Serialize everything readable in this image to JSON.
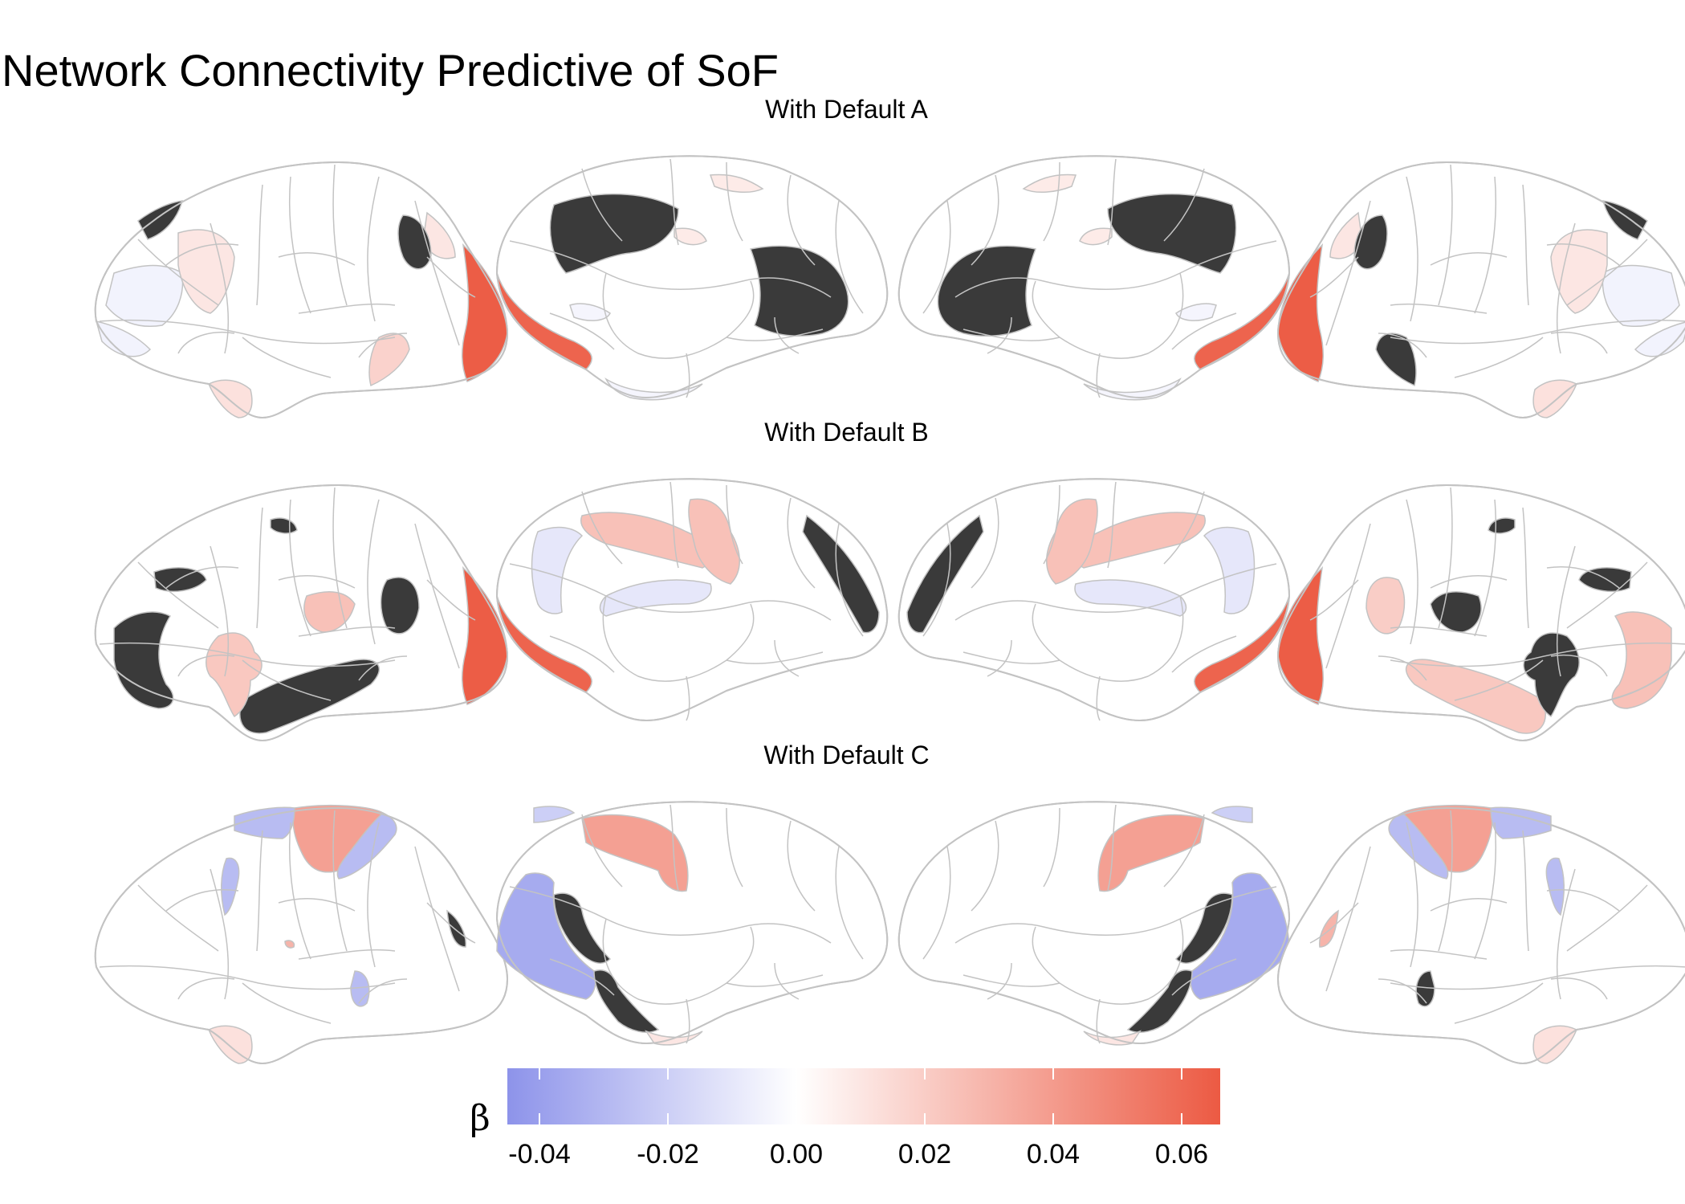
{
  "chart_data": {
    "type": "heatmap",
    "title": "Network Connectivity Predictive of SoF",
    "panels": [
      {
        "label": "With Default A",
        "views": [
          {
            "regions": [
              {
                "id": "R1",
                "value": -0.005
              },
              {
                "id": "R2",
                "value": 0.01
              },
              {
                "id": "R3",
                "value": 0.01
              },
              {
                "id": "R4",
                "value": 0.065
              },
              {
                "id": "R5",
                "value": null
              },
              {
                "id": "R6",
                "value": null
              },
              {
                "id": "R7",
                "value": 0.012
              },
              {
                "id": "R8",
                "value": 0.018
              },
              {
                "id": "R9",
                "value": -0.005
              }
            ]
          },
          {
            "regions": [
              {
                "id": "R1",
                "value": null
              },
              {
                "id": "R2",
                "value": null
              },
              {
                "id": "R3",
                "value": 0.062
              },
              {
                "id": "R4",
                "value": 0.008
              },
              {
                "id": "R5",
                "value": -0.004
              },
              {
                "id": "R6",
                "value": -0.004
              },
              {
                "id": "R7",
                "value": 0.008
              }
            ]
          },
          {
            "regions": [
              {
                "id": "R1",
                "value": null
              },
              {
                "id": "R2",
                "value": null
              },
              {
                "id": "R3",
                "value": 0.062
              },
              {
                "id": "R4",
                "value": 0.008
              },
              {
                "id": "R5",
                "value": -0.004
              },
              {
                "id": "R6",
                "value": -0.004
              },
              {
                "id": "R7",
                "value": 0.008
              }
            ]
          },
          {
            "regions": [
              {
                "id": "R1",
                "value": -0.005
              },
              {
                "id": "R2",
                "value": 0.01
              },
              {
                "id": "R3",
                "value": 0.01
              },
              {
                "id": "R4",
                "value": 0.065
              },
              {
                "id": "R5",
                "value": null
              },
              {
                "id": "R6",
                "value": null
              },
              {
                "id": "R7",
                "value": 0.012
              },
              {
                "id": "R8",
                "value": null
              },
              {
                "id": "R9",
                "value": -0.005
              }
            ]
          }
        ]
      },
      {
        "label": "With Default B",
        "views": [
          {
            "regions": [
              {
                "id": "R1",
                "value": null
              },
              {
                "id": "R2",
                "value": null
              },
              {
                "id": "R3",
                "value": null
              },
              {
                "id": "R4",
                "value": 0.065
              },
              {
                "id": "R5",
                "value": 0.025
              },
              {
                "id": "R6",
                "value": 0.022
              },
              {
                "id": "R7",
                "value": null
              },
              {
                "id": "R8",
                "value": null
              }
            ]
          },
          {
            "regions": [
              {
                "id": "R1",
                "value": 0.025
              },
              {
                "id": "R2",
                "value": 0.025
              },
              {
                "id": "R3",
                "value": -0.01
              },
              {
                "id": "R4",
                "value": -0.01
              },
              {
                "id": "R5",
                "value": null
              },
              {
                "id": "R6",
                "value": 0.062
              }
            ]
          },
          {
            "regions": [
              {
                "id": "R1",
                "value": 0.025
              },
              {
                "id": "R2",
                "value": 0.025
              },
              {
                "id": "R3",
                "value": -0.01
              },
              {
                "id": "R4",
                "value": -0.01
              },
              {
                "id": "R5",
                "value": null
              },
              {
                "id": "R6",
                "value": 0.062
              }
            ]
          },
          {
            "regions": [
              {
                "id": "R1",
                "value": null
              },
              {
                "id": "R2",
                "value": 0.025
              },
              {
                "id": "R3",
                "value": 0.022
              },
              {
                "id": "R4",
                "value": 0.065
              },
              {
                "id": "R5",
                "value": null
              },
              {
                "id": "R6",
                "value": null
              },
              {
                "id": "R7",
                "value": 0.02
              },
              {
                "id": "R8",
                "value": null
              }
            ]
          }
        ]
      },
      {
        "label": "With Default C",
        "views": [
          {
            "regions": [
              {
                "id": "R1",
                "value": 0.038
              },
              {
                "id": "R2",
                "value": -0.028
              },
              {
                "id": "R3",
                "value": -0.028
              },
              {
                "id": "R4",
                "value": -0.028
              },
              {
                "id": "R5",
                "value": -0.028
              },
              {
                "id": "R6",
                "value": null
              },
              {
                "id": "R7",
                "value": 0.012
              },
              {
                "id": "R8",
                "value": 0.03
              }
            ]
          },
          {
            "regions": [
              {
                "id": "R1",
                "value": 0.038
              },
              {
                "id": "R2",
                "value": -0.035
              },
              {
                "id": "R3",
                "value": null
              },
              {
                "id": "R4",
                "value": null
              },
              {
                "id": "R5",
                "value": -0.02
              },
              {
                "id": "R6",
                "value": 0.01
              }
            ]
          },
          {
            "regions": [
              {
                "id": "R1",
                "value": 0.038
              },
              {
                "id": "R2",
                "value": -0.035
              },
              {
                "id": "R3",
                "value": null
              },
              {
                "id": "R4",
                "value": null
              },
              {
                "id": "R5",
                "value": -0.02
              },
              {
                "id": "R6",
                "value": 0.01
              }
            ]
          },
          {
            "regions": [
              {
                "id": "R1",
                "value": 0.038
              },
              {
                "id": "R2",
                "value": -0.028
              },
              {
                "id": "R3",
                "value": -0.028
              },
              {
                "id": "R4",
                "value": -0.028
              },
              {
                "id": "R5",
                "value": null
              },
              {
                "id": "R6",
                "value": 0.03
              },
              {
                "id": "R7",
                "value": 0.012
              }
            ]
          }
        ]
      }
    ],
    "colorbar": {
      "title": "β",
      "range": [
        -0.045,
        0.066
      ],
      "ticks": [
        -0.04,
        -0.02,
        0.0,
        0.02,
        0.04,
        0.06
      ],
      "tick_labels": [
        "-0.04",
        "-0.02",
        "0.00",
        "0.02",
        "0.04",
        "0.06"
      ],
      "low_color": "#8d93ea",
      "mid_color": "#ffffff",
      "high_color": "#ec5a43"
    },
    "na_color": "#3a3a3a",
    "outline_color": "#c3c3c3"
  }
}
